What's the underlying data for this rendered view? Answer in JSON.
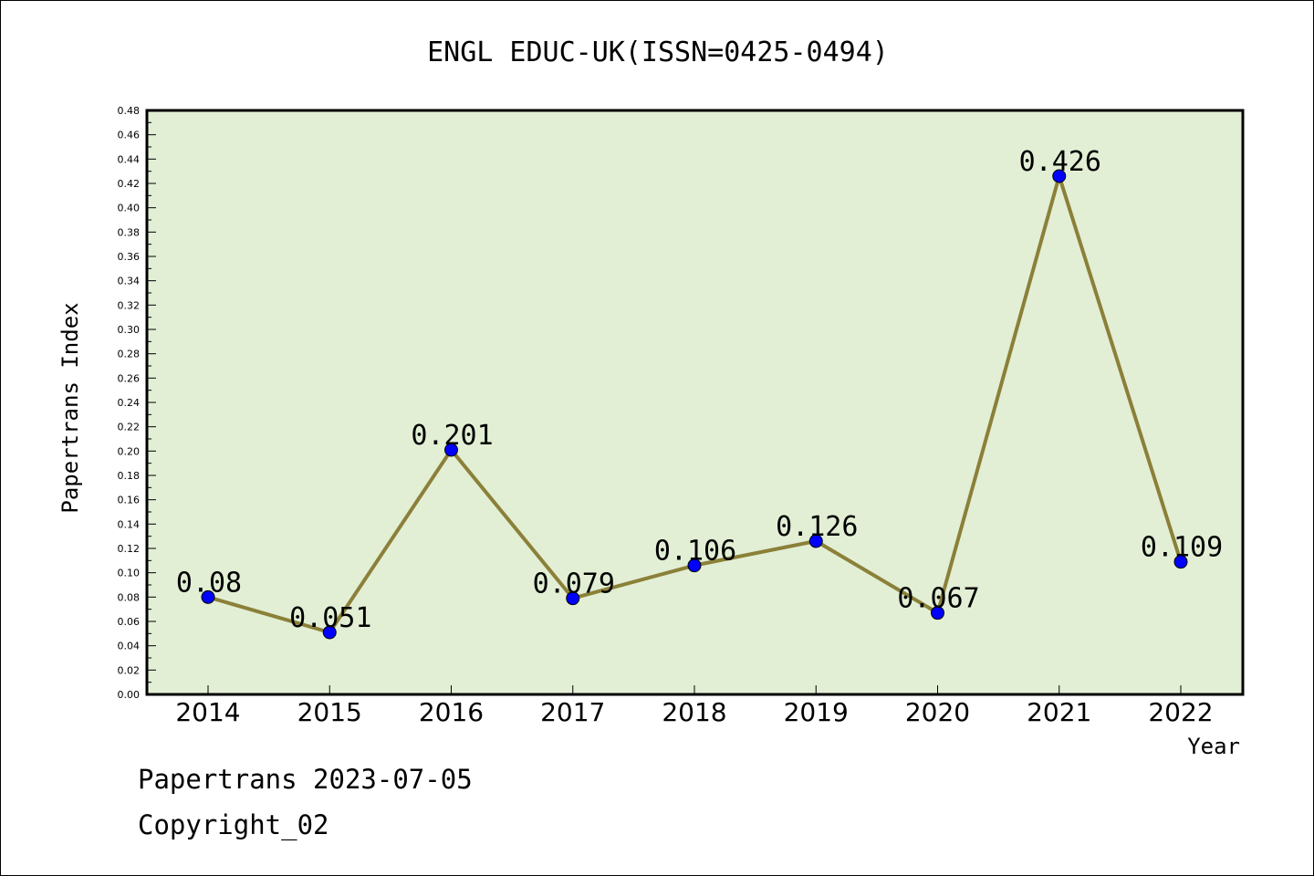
{
  "chart_data": {
    "type": "line",
    "title": "ENGL EDUC-UK(ISSN=0425-0494)",
    "xlabel": "Year",
    "ylabel": "Papertrans Index",
    "categories": [
      "2014",
      "2015",
      "2016",
      "2017",
      "2018",
      "2019",
      "2020",
      "2021",
      "2022"
    ],
    "values": [
      0.08,
      0.051,
      0.201,
      0.079,
      0.106,
      0.126,
      0.067,
      0.426,
      0.109
    ],
    "data_labels": [
      "0.08",
      "0.051",
      "0.201",
      "0.079",
      "0.106",
      "0.126",
      "0.067",
      "0.426",
      "0.109"
    ],
    "ylim": [
      0,
      0.48
    ],
    "yticks": [
      "0.00",
      "0.02",
      "0.04",
      "0.06",
      "0.08",
      "0.10",
      "0.12",
      "0.14",
      "0.16",
      "0.18",
      "0.20",
      "0.22",
      "0.24",
      "0.26",
      "0.28",
      "0.30",
      "0.32",
      "0.34",
      "0.36",
      "0.38",
      "0.40",
      "0.42",
      "0.44",
      "0.46",
      "0.48"
    ],
    "grid": false,
    "colors": {
      "plot_background": "#e2efd5",
      "line": "#8b8038",
      "marker": "#0000ff"
    }
  },
  "footer": {
    "line1": "Papertrans 2023-07-05",
    "line2": "Copyright_02"
  }
}
